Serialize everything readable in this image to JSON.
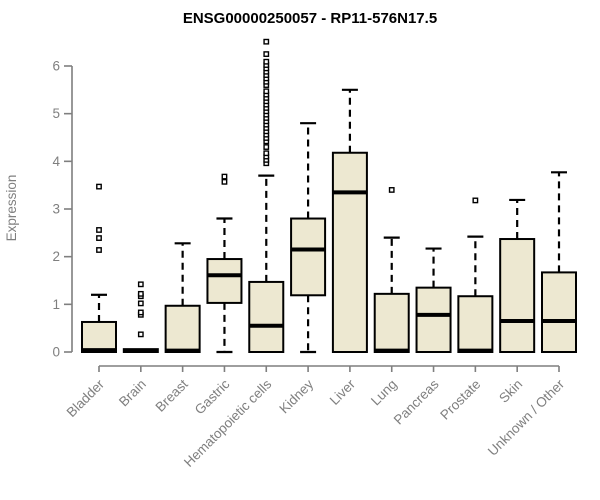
{
  "colors": {
    "box_fill": "#ede8d1",
    "box_border": "#000000",
    "axis": "#7f7f7f",
    "label": "#7f7f7f",
    "title": "#000000"
  },
  "chart_data": {
    "type": "boxplot",
    "title": "ENSG00000250057 - RP11-576N17.5",
    "xlabel": "",
    "ylabel": "Expression",
    "ylim": [
      0,
      6.5
    ],
    "yticks": [
      0,
      1,
      2,
      3,
      4,
      5,
      6
    ],
    "grid": false,
    "legend": "none",
    "categories": [
      "Bladder",
      "Brain",
      "Breast",
      "Gastric",
      "Hematopoietic cells",
      "Kidney",
      "Liver",
      "Lung",
      "Pancreas",
      "Prostate",
      "Skin",
      "Unknown / Other"
    ],
    "boxes": [
      {
        "category": "Bladder",
        "low": 0,
        "q1": 0,
        "median": 0.04,
        "q3": 0.63,
        "high": 1.2,
        "outliers": [
          2.14,
          2.39,
          2.56,
          3.47
        ]
      },
      {
        "category": "Brain",
        "low": 0,
        "q1": 0,
        "median": 0.03,
        "q3": 0.06,
        "high": 0.06,
        "outliers": [
          0.37,
          0.78,
          0.83,
          1.02,
          1.17,
          1.22,
          1.42
        ]
      },
      {
        "category": "Breast",
        "low": 0,
        "q1": 0,
        "median": 0.03,
        "q3": 0.97,
        "high": 2.28,
        "outliers": []
      },
      {
        "category": "Gastric",
        "low": 0,
        "q1": 1.03,
        "median": 1.61,
        "q3": 1.95,
        "high": 2.8,
        "outliers": [
          3.57,
          3.68
        ]
      },
      {
        "category": "Hematopoietic cells",
        "low": 0,
        "q1": 0,
        "median": 0.55,
        "q3": 1.47,
        "high": 3.7,
        "outliers": [
          3.96,
          4.03,
          4.1,
          4.17,
          4.3,
          4.42,
          4.49,
          4.56,
          4.63,
          4.7,
          4.77,
          4.84,
          4.91,
          4.98,
          5.05,
          5.12,
          5.19,
          5.26,
          5.33,
          5.4,
          5.47,
          5.6,
          5.67,
          5.74,
          5.81,
          5.88,
          5.95,
          6.02,
          6.09,
          6.25,
          6.51
        ]
      },
      {
        "category": "Kidney",
        "low": 0,
        "q1": 1.19,
        "median": 2.15,
        "q3": 2.8,
        "high": 4.8,
        "outliers": []
      },
      {
        "category": "Liver",
        "low": 0,
        "q1": 0,
        "median": 3.35,
        "q3": 4.18,
        "high": 5.5,
        "outliers": []
      },
      {
        "category": "Lung",
        "low": 0,
        "q1": 0,
        "median": 0.03,
        "q3": 1.22,
        "high": 2.4,
        "outliers": [
          3.4
        ]
      },
      {
        "category": "Pancreas",
        "low": 0,
        "q1": 0,
        "median": 0.78,
        "q3": 1.35,
        "high": 2.17,
        "outliers": []
      },
      {
        "category": "Prostate",
        "low": 0,
        "q1": 0,
        "median": 0.03,
        "q3": 1.17,
        "high": 2.42,
        "outliers": [
          3.18
        ]
      },
      {
        "category": "Skin",
        "low": 0,
        "q1": 0,
        "median": 0.65,
        "q3": 2.37,
        "high": 3.19,
        "outliers": []
      },
      {
        "category": "Unknown / Other",
        "low": 0,
        "q1": 0,
        "median": 0.65,
        "q3": 1.67,
        "high": 3.77,
        "outliers": []
      }
    ]
  }
}
